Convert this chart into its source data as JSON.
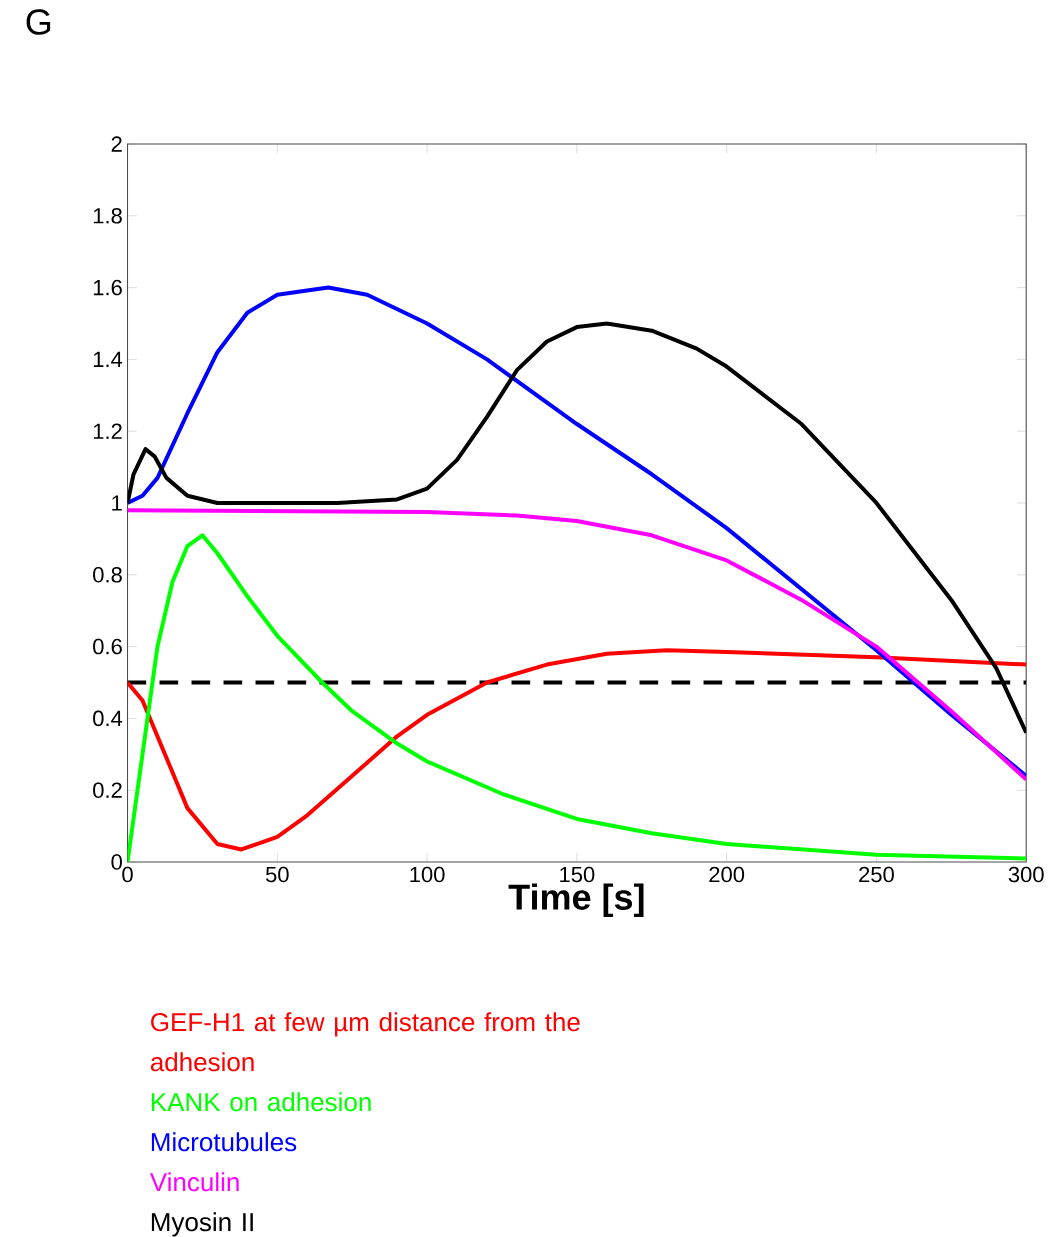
{
  "chart_data": {
    "type": "line",
    "title": "G",
    "xlabel": "Time [s]",
    "xlim": [
      0,
      300
    ],
    "ylim": [
      0,
      2
    ],
    "xticks": [
      0,
      50,
      100,
      150,
      200,
      250,
      300
    ],
    "yticks": [
      0,
      0.2,
      0.4,
      0.6,
      0.8,
      1,
      1.2,
      1.4,
      1.6,
      1.8,
      2
    ],
    "grid": false,
    "legend": "bottom",
    "line_style": "solid",
    "marker": "none",
    "ref_lines": [
      {
        "axis": "y",
        "value": 0.5,
        "color": "#000000",
        "line_style": "dashed"
      }
    ],
    "series": [
      {
        "name": "GEF-H1 at few µm distance from the adhesion",
        "color": "#ff0000",
        "x": [
          0,
          5,
          10,
          20,
          30,
          38,
          50,
          60,
          75,
          90,
          100,
          120,
          140,
          160,
          180,
          200,
          250,
          300
        ],
        "values": [
          0.5,
          0.45,
          0.35,
          0.15,
          0.05,
          0.035,
          0.07,
          0.13,
          0.24,
          0.35,
          0.41,
          0.5,
          0.55,
          0.58,
          0.59,
          0.585,
          0.57,
          0.55
        ]
      },
      {
        "name": "KANK on adhesion",
        "color": "#00ff00",
        "x": [
          0,
          5,
          10,
          15,
          20,
          25,
          30,
          40,
          50,
          65,
          75,
          90,
          100,
          125,
          150,
          175,
          200,
          250,
          300
        ],
        "values": [
          0,
          0.3,
          0.6,
          0.78,
          0.88,
          0.91,
          0.86,
          0.74,
          0.63,
          0.5,
          0.42,
          0.33,
          0.28,
          0.19,
          0.12,
          0.08,
          0.05,
          0.02,
          0.01
        ]
      },
      {
        "name": "Microtubules",
        "color": "#0000ff",
        "x": [
          0,
          5,
          10,
          20,
          30,
          40,
          50,
          67,
          80,
          100,
          120,
          150,
          175,
          200,
          225,
          250,
          275,
          300
        ],
        "values": [
          1.0,
          1.02,
          1.07,
          1.25,
          1.42,
          1.53,
          1.58,
          1.6,
          1.58,
          1.5,
          1.4,
          1.22,
          1.08,
          0.93,
          0.76,
          0.59,
          0.41,
          0.24
        ]
      },
      {
        "name": "Vinculin",
        "color": "#ff00ff",
        "x": [
          0,
          100,
          130,
          150,
          175,
          200,
          225,
          250,
          275,
          300
        ],
        "values": [
          0.98,
          0.975,
          0.965,
          0.95,
          0.91,
          0.84,
          0.73,
          0.6,
          0.42,
          0.23
        ]
      },
      {
        "name": "Myosin II",
        "color": "#000000",
        "x": [
          0,
          2,
          6,
          9,
          13,
          20,
          30,
          70,
          90,
          100,
          110,
          120,
          130,
          140,
          150,
          160,
          175,
          190,
          200,
          225,
          250,
          275,
          290,
          300
        ],
        "values": [
          1.0,
          1.08,
          1.15,
          1.13,
          1.07,
          1.02,
          1.0,
          1.0,
          1.01,
          1.04,
          1.12,
          1.24,
          1.37,
          1.45,
          1.49,
          1.5,
          1.48,
          1.43,
          1.38,
          1.22,
          1.0,
          0.73,
          0.54,
          0.36
        ]
      }
    ]
  }
}
